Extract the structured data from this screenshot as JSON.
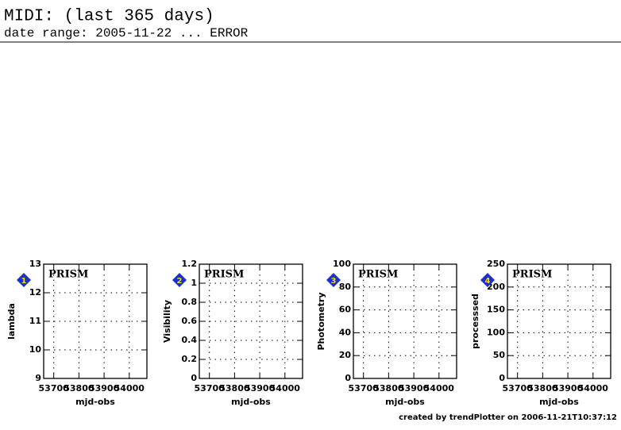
{
  "title": "MIDI: (last 365 days)",
  "subtitle": "date range: 2005-11-22 ... ERROR",
  "footer": "created by trendPlotter on 2006-11-21T10:37:12",
  "chart_data": [
    {
      "type": "scatter",
      "badge": 1,
      "label": "PRISM",
      "xlabel": "mjd-obs",
      "ylabel": "lambda",
      "xlim": [
        53660,
        54070
      ],
      "xticks": [
        53700,
        53800,
        53900,
        54000
      ],
      "ylim": [
        9,
        13
      ],
      "yticks": [
        9,
        10,
        11,
        12,
        13
      ],
      "grid": true
    },
    {
      "type": "scatter",
      "badge": 2,
      "label": "PRISM",
      "xlabel": "mjd-obs",
      "ylabel": "Visibility",
      "xlim": [
        53660,
        54070
      ],
      "xticks": [
        53700,
        53800,
        53900,
        54000
      ],
      "ylim": [
        0,
        1.2
      ],
      "yticks": [
        0,
        0.2,
        0.4,
        0.6,
        0.8,
        1,
        1.2
      ],
      "grid": true
    },
    {
      "type": "scatter",
      "badge": 3,
      "label": "PRISM",
      "xlabel": "mjd-obs",
      "ylabel": "Photometry",
      "xlim": [
        53660,
        54070
      ],
      "xticks": [
        53700,
        53800,
        53900,
        54000
      ],
      "ylim": [
        0,
        100
      ],
      "yticks": [
        0,
        20,
        40,
        60,
        80,
        100
      ],
      "grid": true
    },
    {
      "type": "scatter",
      "badge": 4,
      "label": "PRISM",
      "xlabel": "mjd-obs",
      "ylabel": "processsed",
      "xlim": [
        53660,
        54070
      ],
      "xticks": [
        53700,
        53800,
        53900,
        54000
      ],
      "ylim": [
        0,
        250
      ],
      "yticks": [
        0,
        50,
        100,
        150,
        200,
        250
      ],
      "grid": true
    }
  ]
}
